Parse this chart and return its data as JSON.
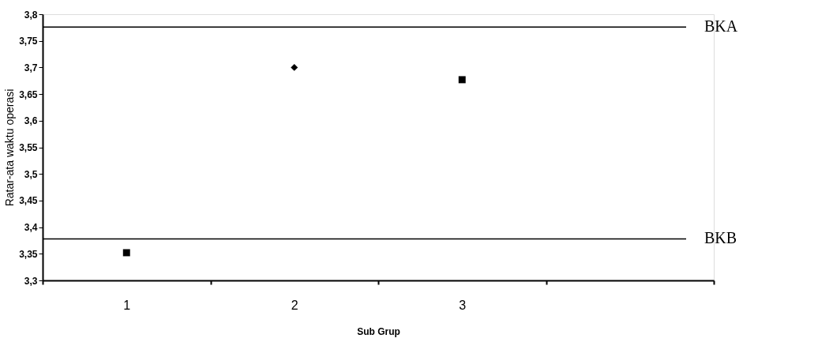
{
  "chart_data": {
    "type": "scatter",
    "xlabel": "Sub Grup",
    "ylabel": "Ratar-ata waktu operasi",
    "categories": [
      "1",
      "2",
      "3",
      null
    ],
    "series": [
      {
        "type": "scatter",
        "color": "#000000",
        "marker": "square",
        "values": [
          3.352,
          null,
          3.677,
          null
        ]
      },
      {
        "type": "scatter",
        "color": "#000000",
        "marker": "diamond",
        "values": [
          null,
          3.7,
          null,
          null
        ]
      }
    ],
    "ylim": [
      3.3,
      3.8
    ],
    "yticks": [
      {
        "value": 3.3,
        "label": "3,3"
      },
      {
        "value": 3.35,
        "label": "3,35"
      },
      {
        "value": 3.4,
        "label": "3,4"
      },
      {
        "value": 3.45,
        "label": "3,45"
      },
      {
        "value": 3.5,
        "label": "3,5"
      },
      {
        "value": 3.55,
        "label": "3,55"
      },
      {
        "value": 3.6,
        "label": "3,6"
      },
      {
        "value": 3.65,
        "label": "3,65"
      },
      {
        "value": 3.7,
        "label": "3,7"
      },
      {
        "value": 3.75,
        "label": "3,75"
      },
      {
        "value": 3.8,
        "label": "3,8"
      }
    ],
    "ref_lines": [
      {
        "axis": "y",
        "value": 3.776,
        "label": "BKA",
        "color": "#000000"
      },
      {
        "axis": "y",
        "value": 3.378,
        "label": "BKB",
        "color": "#000000"
      }
    ],
    "grid": false
  }
}
